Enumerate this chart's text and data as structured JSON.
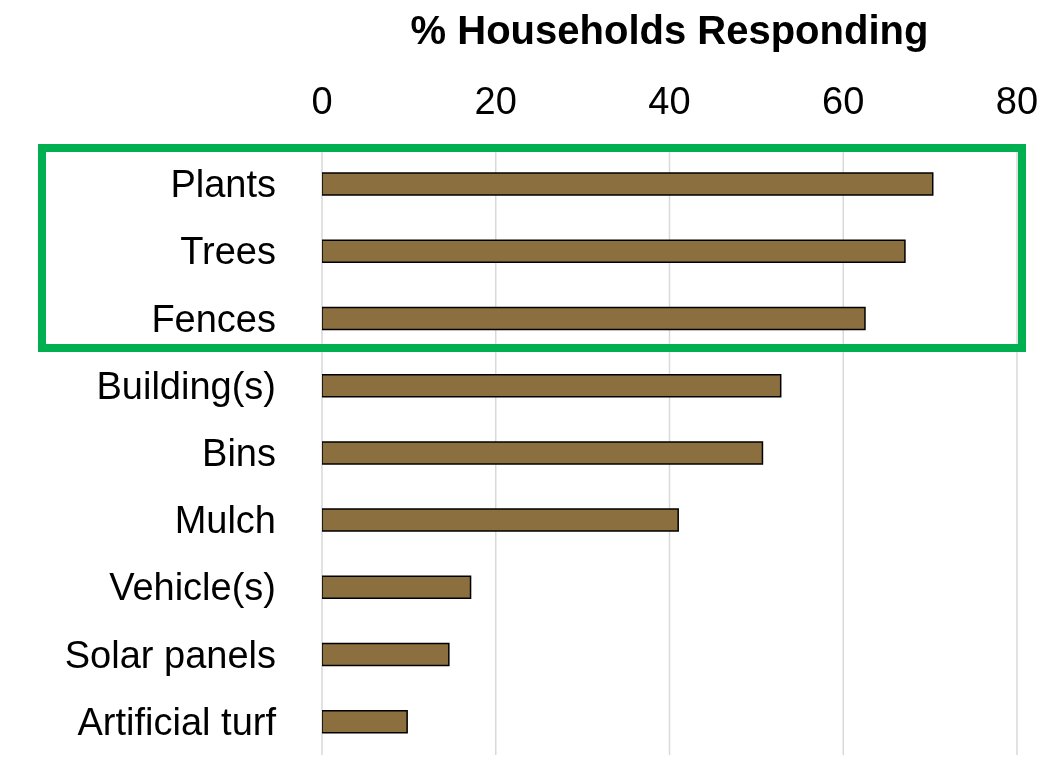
{
  "chart_data": {
    "type": "bar",
    "orientation": "horizontal",
    "xlabel": "% Households Responding",
    "categories": [
      "Plants",
      "Trees",
      "Fences",
      "Building(s)",
      "Bins",
      "Mulch",
      "Vehicle(s)",
      "Solar panels",
      "Artificial turf"
    ],
    "values": [
      70.3,
      67.1,
      62.5,
      52.8,
      50.7,
      41.0,
      17.1,
      14.6,
      9.8
    ],
    "color": "#8b6f3e",
    "xlim": [
      0,
      80
    ],
    "xticks": [
      0,
      20,
      40,
      60,
      80
    ],
    "grid": "x"
  }
}
